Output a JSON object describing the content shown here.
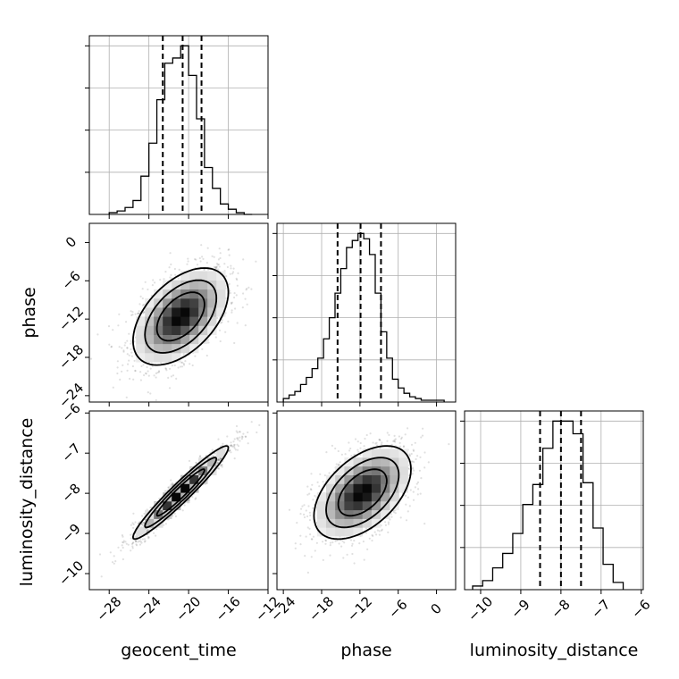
{
  "chart_data": {
    "type": "corner",
    "parameters": [
      "geocent_time",
      "phase",
      "luminosity_distance"
    ],
    "grid": true,
    "histograms": [
      {
        "parameter": "geocent_time",
        "range": [
          -30,
          -12
        ],
        "ticks": [
          -28,
          -24,
          -20,
          -16,
          -12
        ],
        "quantiles": [
          -22.6,
          -20.6,
          -18.7
        ],
        "bin_edges": [
          -28.0,
          -27.2,
          -26.4,
          -25.6,
          -24.8,
          -24.0,
          -23.2,
          -22.4,
          -21.6,
          -20.8,
          -20.0,
          -19.2,
          -18.4,
          -17.6,
          -16.8,
          -16.0,
          -15.2,
          -14.4,
          -13.6
        ],
        "counts": [
          1,
          2,
          4,
          8,
          22,
          41,
          66,
          87,
          90,
          97,
          80,
          55,
          27,
          15,
          6,
          3,
          1,
          0
        ]
      },
      {
        "parameter": "phase",
        "range": [
          -25,
          3
        ],
        "ticks": [
          -24,
          -18,
          -12,
          -6,
          0
        ],
        "quantiles": [
          -15.5,
          -11.9,
          -8.7
        ],
        "bin_edges": [
          -24.0,
          -23.1,
          -22.2,
          -21.3,
          -20.4,
          -19.5,
          -18.6,
          -17.7,
          -16.8,
          -15.9,
          -15.0,
          -14.1,
          -13.2,
          -12.3,
          -11.4,
          -10.5,
          -9.6,
          -8.7,
          -7.8,
          -6.9,
          -6.0,
          -5.1,
          -4.2,
          -3.3,
          -2.4,
          -1.5,
          -0.6,
          0.3,
          1.2
        ],
        "counts": [
          2,
          4,
          6,
          10,
          14,
          19,
          25,
          36,
          48,
          62,
          76,
          88,
          92,
          96,
          93,
          84,
          62,
          40,
          25,
          13,
          8,
          5,
          3,
          2,
          1,
          1,
          1,
          1
        ]
      },
      {
        "parameter": "luminosity_distance",
        "range": [
          -10.4,
          -5.95
        ],
        "ticks": [
          -10,
          -9,
          -8,
          -7,
          -6
        ],
        "quantiles": [
          -8.52,
          -8.0,
          -7.5
        ],
        "bin_edges": [
          -10.2,
          -9.95,
          -9.7,
          -9.45,
          -9.2,
          -8.95,
          -8.7,
          -8.45,
          -8.2,
          -7.95,
          -7.7,
          -7.45,
          -7.2,
          -6.95,
          -6.7,
          -6.45
        ],
        "counts": [
          2,
          5,
          12,
          20,
          31,
          47,
          58,
          78,
          93,
          93,
          86,
          59,
          34,
          14,
          4
        ]
      }
    ],
    "pairs": [
      {
        "x": "geocent_time",
        "y": "phase",
        "mean": [
          -20.8,
          -11.6
        ],
        "std": [
          2.4,
          3.8
        ],
        "correlation": 0.5,
        "xlim": [
          -30,
          -12
        ],
        "ylim": [
          -25,
          3
        ],
        "yticks": [
          0,
          -6,
          -12,
          -18,
          -24
        ]
      },
      {
        "x": "geocent_time",
        "y": "luminosity_distance",
        "mean": [
          -20.8,
          -7.98
        ],
        "std": [
          2.4,
          0.58
        ],
        "correlation": 0.96,
        "xlim": [
          -30,
          -12
        ],
        "ylim": [
          -10.4,
          -5.95
        ],
        "yticks": [
          -6,
          -7,
          -8,
          -9,
          -10
        ]
      },
      {
        "x": "phase",
        "y": "luminosity_distance",
        "mean": [
          -11.6,
          -7.98
        ],
        "std": [
          3.8,
          0.58
        ],
        "correlation": 0.5,
        "xlim": [
          -25,
          3
        ],
        "ylim": [
          -10.4,
          -5.95
        ]
      }
    ],
    "xlabels": [
      "geocent_time",
      "phase",
      "luminosity_distance"
    ],
    "ylabels": [
      "phase",
      "luminosity_distance"
    ]
  }
}
